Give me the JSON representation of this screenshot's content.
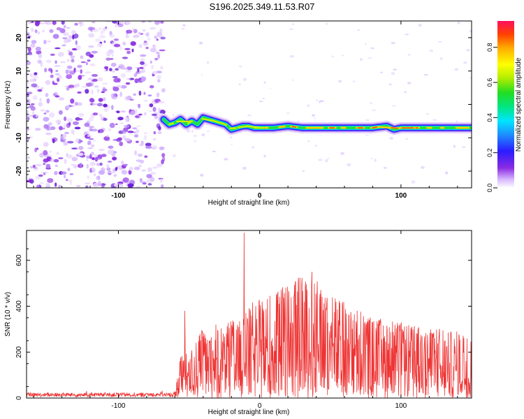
{
  "title": "S196.2025.349.11.53.R07",
  "chart_data": [
    {
      "type": "heatmap",
      "name": "spectrogram",
      "xlabel": "Height of straight line (km)",
      "ylabel": "Frequency (Hz)",
      "xlim": [
        -165,
        150
      ],
      "ylim": [
        -25,
        25
      ],
      "xticks": [
        -100,
        0,
        100
      ],
      "yticks": [
        -20,
        -10,
        0,
        10,
        20
      ],
      "noise_region_end_km": -68,
      "track": {
        "x": [
          -68,
          -64,
          -60,
          -56,
          -52,
          -48,
          -44,
          -40,
          -36,
          -32,
          -28,
          -24,
          -20,
          -16,
          -12,
          -8,
          -4,
          0,
          10,
          20,
          30,
          40,
          50,
          60,
          70,
          80,
          90,
          95,
          100,
          110,
          120,
          130,
          140,
          150
        ],
        "y": [
          -4.5,
          -6,
          -5.5,
          -4.5,
          -6,
          -5,
          -6,
          -4,
          -4.5,
          -5,
          -5.5,
          -6,
          -7.5,
          -7,
          -6.5,
          -6.5,
          -7,
          -7,
          -7,
          -6.5,
          -7,
          -7,
          -7,
          -7,
          -7,
          -7,
          -6.5,
          -7.5,
          -7,
          -7,
          -7,
          -7,
          -7,
          -7
        ]
      },
      "colorbar": {
        "label": "Normalized spectral amplitude",
        "range": [
          0,
          0.95
        ],
        "ticks": [
          0.0,
          0.2,
          0.4,
          0.6,
          0.8
        ]
      }
    },
    {
      "type": "line",
      "name": "snr",
      "xlabel": "Height of straight line (km)",
      "ylabel": "SNR (10 * v/v)",
      "xlim": [
        -165,
        150
      ],
      "ylim": [
        0,
        730
      ],
      "xticks": [
        -100,
        0,
        100
      ],
      "yticks": [
        0,
        200,
        400,
        600
      ],
      "color": "#ee3333",
      "envelope": {
        "x": [
          -165,
          -60,
          -57,
          -54,
          -50,
          -45,
          -40,
          -35,
          -30,
          -25,
          -20,
          -15,
          -10,
          -5,
          0,
          10,
          20,
          30,
          40,
          45,
          50,
          60,
          70,
          80,
          90,
          100,
          110,
          120,
          130,
          140,
          150
        ],
        "y": [
          22,
          25,
          150,
          240,
          170,
          280,
          300,
          250,
          360,
          300,
          350,
          330,
          380,
          420,
          430,
          460,
          510,
          530,
          520,
          480,
          460,
          420,
          380,
          360,
          340,
          330,
          320,
          310,
          300,
          290,
          280
        ]
      },
      "spikes": [
        {
          "x": -11,
          "y": 720
        },
        {
          "x": -53,
          "y": 380
        },
        {
          "x": 37,
          "y": 550
        }
      ]
    }
  ]
}
